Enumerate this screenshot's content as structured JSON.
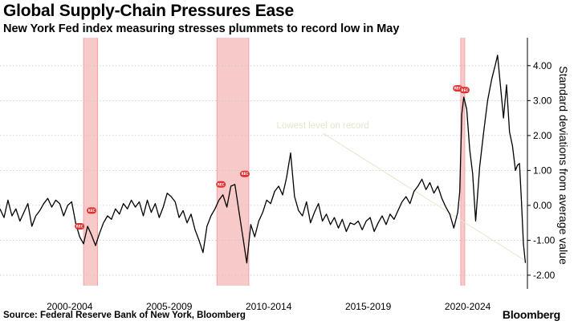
{
  "header": {
    "title": "Global Supply-Chain Pressures Ease",
    "subtitle": "New York Fed index measuring stresses plummets to record low in May"
  },
  "footer": {
    "source": "Source: Federal Reserve Bank of New York, Bloomberg",
    "brand": "Bloomberg"
  },
  "colors": {
    "line": "#000000",
    "recession_band": "#f8c9c9",
    "recession_band_edge": "#f2a3a3",
    "badge": "#e03131",
    "annotation": "#dfeacb"
  },
  "chart_data": {
    "type": "line",
    "title": "Global Supply-Chain Pressures Ease",
    "subtitle": "New York Fed index measuring stresses plummets to record low in May",
    "ylabel": "Standard deviations from average value",
    "ylim": [
      -2.3,
      4.8
    ],
    "yticks": [
      4.0,
      3.0,
      2.0,
      1.0,
      0.0,
      -1.0,
      -2.0
    ],
    "ytick_labels": [
      "4.00",
      "3.00",
      "2.00",
      "1.00",
      "0.00",
      "-1.00",
      "-2.00"
    ],
    "xlim": [
      1997.0,
      2023.5
    ],
    "xticks": [
      2000.5,
      2005.5,
      2010.5,
      2015.5,
      2020.5
    ],
    "xtick_labels": [
      "2000-2004",
      "2005-2009",
      "2010-2014",
      "2015-2019",
      "2020-2024"
    ],
    "y_axis_side": "right",
    "grid": "horizontal dashed",
    "recessions": [
      {
        "start": 2001.2,
        "end": 2001.9
      },
      {
        "start": 2007.9,
        "end": 2009.5
      },
      {
        "start": 2020.15,
        "end": 2020.35
      }
    ],
    "annotation": {
      "text": "Lowest level on record",
      "at": [
        2023.4,
        -1.65
      ],
      "label_at": [
        2010.9,
        2.2
      ]
    },
    "badges": [
      {
        "x": 2001.6,
        "y": -0.15,
        "label": "REC"
      },
      {
        "x": 2001.0,
        "y": -0.6,
        "label": "REC"
      },
      {
        "x": 2008.1,
        "y": 0.6,
        "label": "REC"
      },
      {
        "x": 2009.3,
        "y": 0.9,
        "label": "REC"
      },
      {
        "x": 2020.0,
        "y": 3.35,
        "label": "REC"
      },
      {
        "x": 2020.35,
        "y": 3.3,
        "label": "REC"
      }
    ],
    "series": [
      {
        "points": [
          [
            1997.0,
            -0.1
          ],
          [
            1997.2,
            -0.35
          ],
          [
            1997.4,
            0.15
          ],
          [
            1997.6,
            -0.3
          ],
          [
            1997.8,
            -0.1
          ],
          [
            1998.0,
            -0.45
          ],
          [
            1998.2,
            -0.2
          ],
          [
            1998.4,
            0.05
          ],
          [
            1998.6,
            -0.6
          ],
          [
            1998.8,
            -0.3
          ],
          [
            1999.0,
            -0.15
          ],
          [
            1999.2,
            0.05
          ],
          [
            1999.4,
            0.2
          ],
          [
            1999.6,
            -0.05
          ],
          [
            1999.8,
            0.15
          ],
          [
            2000.0,
            0.05
          ],
          [
            2000.2,
            -0.3
          ],
          [
            2000.4,
            0.0
          ],
          [
            2000.6,
            0.1
          ],
          [
            2000.8,
            -0.5
          ],
          [
            2001.0,
            -0.9
          ],
          [
            2001.2,
            -1.1
          ],
          [
            2001.4,
            -0.6
          ],
          [
            2001.6,
            -0.85
          ],
          [
            2001.8,
            -1.15
          ],
          [
            2002.0,
            -0.8
          ],
          [
            2002.2,
            -0.5
          ],
          [
            2002.4,
            -0.3
          ],
          [
            2002.6,
            -0.4
          ],
          [
            2002.8,
            -0.1
          ],
          [
            2003.0,
            -0.25
          ],
          [
            2003.2,
            0.05
          ],
          [
            2003.4,
            -0.1
          ],
          [
            2003.6,
            0.15
          ],
          [
            2003.8,
            -0.05
          ],
          [
            2004.0,
            0.1
          ],
          [
            2004.2,
            -0.3
          ],
          [
            2004.4,
            0.15
          ],
          [
            2004.6,
            -0.2
          ],
          [
            2004.8,
            0.05
          ],
          [
            2005.0,
            -0.35
          ],
          [
            2005.2,
            -0.05
          ],
          [
            2005.4,
            0.35
          ],
          [
            2005.6,
            0.25
          ],
          [
            2005.8,
            0.1
          ],
          [
            2006.0,
            -0.35
          ],
          [
            2006.2,
            -0.15
          ],
          [
            2006.4,
            -0.5
          ],
          [
            2006.6,
            -0.25
          ],
          [
            2006.8,
            -0.7
          ],
          [
            2007.0,
            -1.0
          ],
          [
            2007.2,
            -1.35
          ],
          [
            2007.4,
            -0.6
          ],
          [
            2007.6,
            -0.3
          ],
          [
            2007.8,
            -0.1
          ],
          [
            2008.0,
            0.15
          ],
          [
            2008.2,
            0.3
          ],
          [
            2008.4,
            -0.05
          ],
          [
            2008.6,
            0.55
          ],
          [
            2008.8,
            0.6
          ],
          [
            2009.0,
            -0.15
          ],
          [
            2009.2,
            -0.9
          ],
          [
            2009.4,
            -1.65
          ],
          [
            2009.6,
            -0.55
          ],
          [
            2009.8,
            -0.9
          ],
          [
            2010.0,
            -0.45
          ],
          [
            2010.2,
            -0.2
          ],
          [
            2010.4,
            0.15
          ],
          [
            2010.6,
            0.05
          ],
          [
            2010.8,
            0.4
          ],
          [
            2011.0,
            0.55
          ],
          [
            2011.2,
            0.3
          ],
          [
            2011.4,
            0.8
          ],
          [
            2011.6,
            1.5
          ],
          [
            2011.8,
            0.25
          ],
          [
            2012.0,
            -0.15
          ],
          [
            2012.2,
            -0.3
          ],
          [
            2012.4,
            0.1
          ],
          [
            2012.6,
            -0.5
          ],
          [
            2012.8,
            -0.2
          ],
          [
            2013.0,
            0.05
          ],
          [
            2013.2,
            -0.45
          ],
          [
            2013.4,
            -0.25
          ],
          [
            2013.6,
            -0.55
          ],
          [
            2013.8,
            -0.35
          ],
          [
            2014.0,
            -0.65
          ],
          [
            2014.2,
            -0.4
          ],
          [
            2014.4,
            -0.75
          ],
          [
            2014.6,
            -0.5
          ],
          [
            2014.8,
            -0.55
          ],
          [
            2015.0,
            -0.45
          ],
          [
            2015.2,
            -0.7
          ],
          [
            2015.4,
            -0.45
          ],
          [
            2015.6,
            -0.35
          ],
          [
            2015.8,
            -0.75
          ],
          [
            2016.0,
            -0.5
          ],
          [
            2016.2,
            -0.3
          ],
          [
            2016.4,
            -0.55
          ],
          [
            2016.6,
            -0.25
          ],
          [
            2016.8,
            -0.4
          ],
          [
            2017.0,
            -0.15
          ],
          [
            2017.2,
            0.1
          ],
          [
            2017.4,
            0.25
          ],
          [
            2017.6,
            0.05
          ],
          [
            2017.8,
            0.4
          ],
          [
            2018.0,
            0.55
          ],
          [
            2018.2,
            0.75
          ],
          [
            2018.4,
            0.45
          ],
          [
            2018.6,
            0.65
          ],
          [
            2018.8,
            0.35
          ],
          [
            2019.0,
            0.55
          ],
          [
            2019.2,
            0.2
          ],
          [
            2019.4,
            -0.05
          ],
          [
            2019.6,
            -0.25
          ],
          [
            2019.8,
            -0.65
          ],
          [
            2020.0,
            -0.2
          ],
          [
            2020.1,
            0.4
          ],
          [
            2020.2,
            2.6
          ],
          [
            2020.3,
            3.1
          ],
          [
            2020.45,
            2.75
          ],
          [
            2020.6,
            1.6
          ],
          [
            2020.75,
            0.9
          ],
          [
            2020.9,
            -0.45
          ],
          [
            2021.1,
            1.1
          ],
          [
            2021.3,
            2.1
          ],
          [
            2021.5,
            3.0
          ],
          [
            2021.7,
            3.6
          ],
          [
            2021.9,
            4.05
          ],
          [
            2022.0,
            4.3
          ],
          [
            2022.15,
            3.4
          ],
          [
            2022.3,
            2.5
          ],
          [
            2022.45,
            3.45
          ],
          [
            2022.6,
            2.1
          ],
          [
            2022.75,
            1.7
          ],
          [
            2022.9,
            1.0
          ],
          [
            2023.0,
            1.15
          ],
          [
            2023.1,
            1.2
          ],
          [
            2023.2,
            0.1
          ],
          [
            2023.3,
            -1.1
          ],
          [
            2023.4,
            -1.65
          ]
        ]
      }
    ]
  }
}
